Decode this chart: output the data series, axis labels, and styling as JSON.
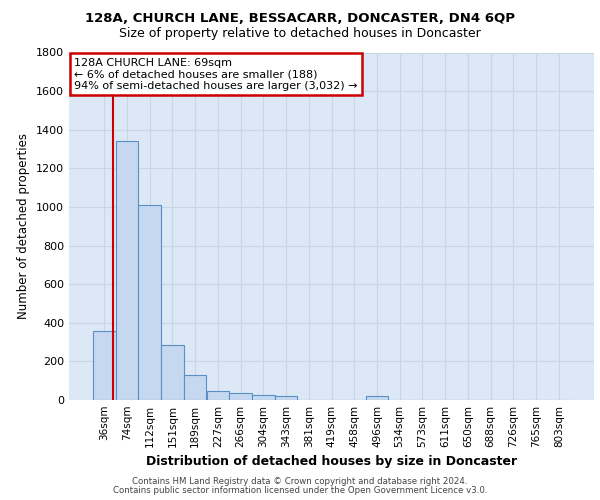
{
  "title_line1": "128A, CHURCH LANE, BESSACARR, DONCASTER, DN4 6QP",
  "title_line2": "Size of property relative to detached houses in Doncaster",
  "xlabel": "Distribution of detached houses by size in Doncaster",
  "ylabel": "Number of detached properties",
  "categories": [
    "36sqm",
    "74sqm",
    "112sqm",
    "151sqm",
    "189sqm",
    "227sqm",
    "266sqm",
    "304sqm",
    "343sqm",
    "381sqm",
    "419sqm",
    "458sqm",
    "496sqm",
    "534sqm",
    "573sqm",
    "611sqm",
    "650sqm",
    "688sqm",
    "726sqm",
    "765sqm",
    "803sqm"
  ],
  "values": [
    360,
    1340,
    1010,
    285,
    130,
    45,
    35,
    25,
    20,
    0,
    0,
    0,
    20,
    0,
    0,
    0,
    0,
    0,
    0,
    0,
    0
  ],
  "bar_color": "#c5d8f0",
  "bar_edge_color": "#5b8ec4",
  "vline_color": "#cc0000",
  "vline_pos": 0.08,
  "ylim": [
    0,
    1800
  ],
  "yticks": [
    0,
    200,
    400,
    600,
    800,
    1000,
    1200,
    1400,
    1600,
    1800
  ],
  "annotation_title": "128A CHURCH LANE: 69sqm",
  "annotation_line1": "← 6% of detached houses are smaller (188)",
  "annotation_line2": "94% of semi-detached houses are larger (3,032) →",
  "annotation_box_color": "#ffffff",
  "annotation_box_edge": "#cc0000",
  "grid_color": "#c8d4e8",
  "background_color": "#dce8f5",
  "footer_line1": "Contains HM Land Registry data © Crown copyright and database right 2024.",
  "footer_line2": "Contains public sector information licensed under the Open Government Licence v3.0."
}
